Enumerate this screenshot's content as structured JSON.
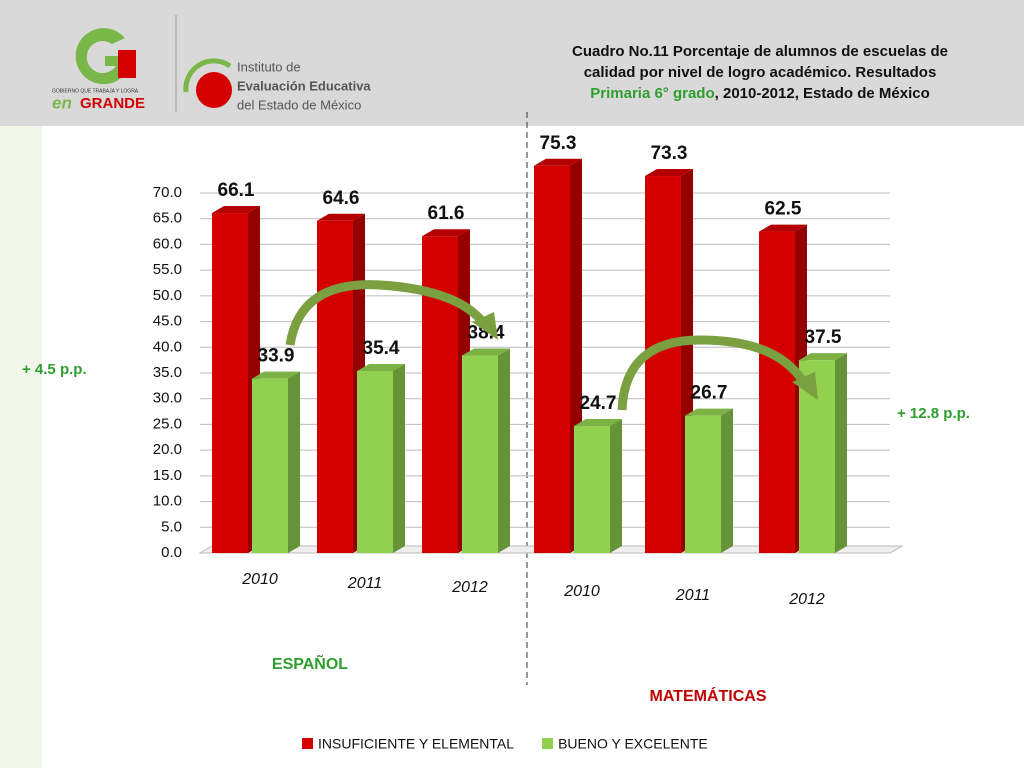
{
  "header": {
    "logo_letters": "en",
    "logo_word": "GRANDE",
    "logo_tagline": "GOBIERNO QUE TRABAJA Y LOGRA",
    "institute_lines": [
      "Instituto de",
      "Evaluación Educativa",
      "del Estado de México"
    ]
  },
  "chart_data": {
    "type": "bar3d",
    "title_lines": [
      "Cuadro No.11 Porcentaje de alumnos de escuelas de",
      "calidad por nivel de logro académico. Resultados"
    ],
    "title_highlight": "Primaria 6° grado",
    "title_rest": ", 2010-2012, Estado de México",
    "categories": [
      "2010",
      "2011",
      "2012",
      "2010",
      "2011",
      "2012"
    ],
    "groups": [
      "ESPAÑOL",
      "MATEMÁTICAS"
    ],
    "series": [
      {
        "name": "INSUFICIENTE Y ELEMENTAL",
        "color": "#d40000",
        "values": [
          66.1,
          64.6,
          61.6,
          75.3,
          73.3,
          62.5
        ]
      },
      {
        "name": "BUENO Y EXCELENTE",
        "color": "#92d050",
        "values": [
          33.9,
          35.4,
          38.4,
          24.7,
          26.7,
          37.5
        ]
      }
    ],
    "ylim": [
      0,
      70
    ],
    "yticks": [
      {
        "value": 0,
        "label": "0.0"
      },
      {
        "value": 5,
        "label": "5.0"
      },
      {
        "value": 10,
        "label": "10.0"
      },
      {
        "value": 15,
        "label": "15.0"
      },
      {
        "value": 20,
        "label": "20.0"
      },
      {
        "value": 25,
        "label": "25.0"
      },
      {
        "value": 30,
        "label": "30.0"
      },
      {
        "value": 35,
        "label": "35.0"
      },
      {
        "value": 40,
        "label": "40.0"
      },
      {
        "value": 45,
        "label": "45.0"
      },
      {
        "value": 50,
        "label": "50.0"
      },
      {
        "value": 55,
        "label": "55.0"
      },
      {
        "value": 60,
        "label": "60.0"
      },
      {
        "value": 65,
        "label": "65.0"
      },
      {
        "value": 70,
        "label": "70.0"
      }
    ],
    "grid": true,
    "annotations": [
      "+ 4.5  p.p.",
      "+ 12.8 p.p."
    ]
  }
}
